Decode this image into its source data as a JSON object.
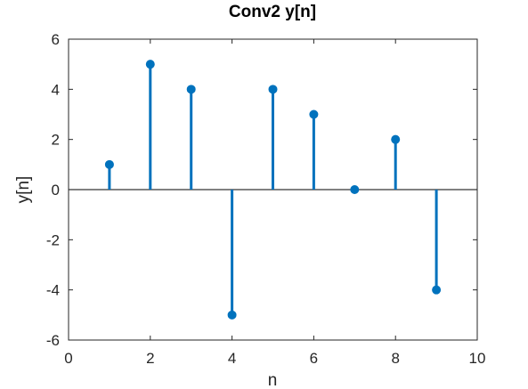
{
  "chart_data": {
    "type": "stem",
    "title": "Conv2 y[n]",
    "xlabel": "n",
    "ylabel": "y[n]",
    "xlim": [
      0,
      10
    ],
    "ylim": [
      -6,
      6
    ],
    "xticks": [
      0,
      2,
      4,
      6,
      8,
      10
    ],
    "yticks": [
      -6,
      -4,
      -2,
      0,
      2,
      4,
      6
    ],
    "x": [
      1,
      2,
      3,
      4,
      5,
      6,
      7,
      8,
      9
    ],
    "y": [
      1,
      5,
      4,
      -5,
      4,
      3,
      0,
      2,
      -4
    ],
    "baseline": 0,
    "grid": false,
    "color": "#0072BD"
  }
}
